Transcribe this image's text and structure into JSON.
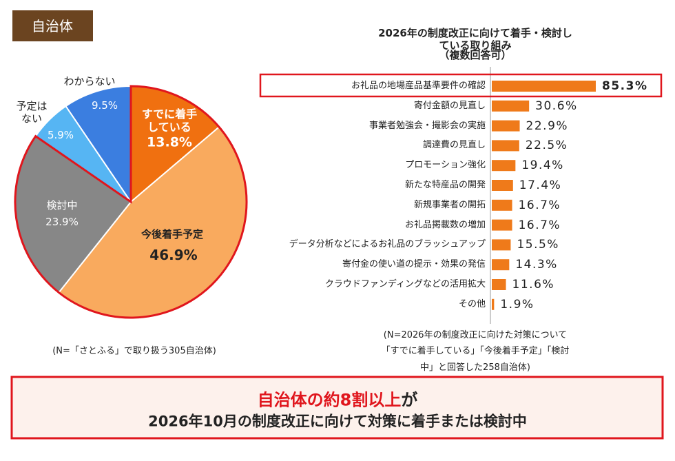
{
  "tag": "自治体",
  "chart_data": [
    {
      "type": "pie",
      "categories": [
        "すでに着手\nしている",
        "今後着手予定",
        "検討中",
        "予定は\nない",
        "わからない"
      ],
      "values": [
        13.8,
        46.9,
        23.9,
        5.9,
        9.5
      ],
      "value_labels": [
        "13.8%",
        "46.9%",
        "23.9%",
        "5.9%",
        "9.5%"
      ],
      "colors": [
        "#f07010",
        "#f9aa5e",
        "#878787",
        "#56b5f3",
        "#3b7ee0"
      ],
      "note": "(N=「さとふる」で取り扱う305自治体)"
    },
    {
      "type": "bar",
      "orientation": "horizontal",
      "title": "2026年の制度改正に向けて着手・検討している取り組み",
      "subtitle": "（複数回答可）",
      "categories": [
        "お礼品の地場産品基準要件の確認",
        "寄付金額の見直し",
        "事業者勉強会・撮影会の実施",
        "調達費の見直し",
        "プロモーション強化",
        "新たな特産品の開発",
        "新規事業者の開拓",
        "お礼品掲載数の増加",
        "データ分析などによるお礼品のブラッシュアップ",
        "寄付金の使い道の提示・効果の発信",
        "クラウドファンディングなどの活用拡大",
        "その他"
      ],
      "values": [
        85.3,
        30.6,
        22.9,
        22.5,
        19.4,
        17.4,
        16.7,
        16.7,
        15.5,
        14.3,
        11.6,
        1.9
      ],
      "value_labels": [
        "85.3%",
        "30.6%",
        "22.9%",
        "22.5%",
        "19.4%",
        "17.4%",
        "16.7%",
        "16.7%",
        "15.5%",
        "14.3%",
        "11.6%",
        "1.9%"
      ],
      "color": "#ef7a1a",
      "note": "(N=2026年の制度改正に向けた対策について\n「すでに着手している」「今後着手予定」「検討中」と回答した258自治体)"
    }
  ],
  "banner": {
    "highlight": "自治体の約8割以上",
    "suffix": "が",
    "line2": "2026年10月の制度改正に向けて対策に着手または検討中"
  }
}
